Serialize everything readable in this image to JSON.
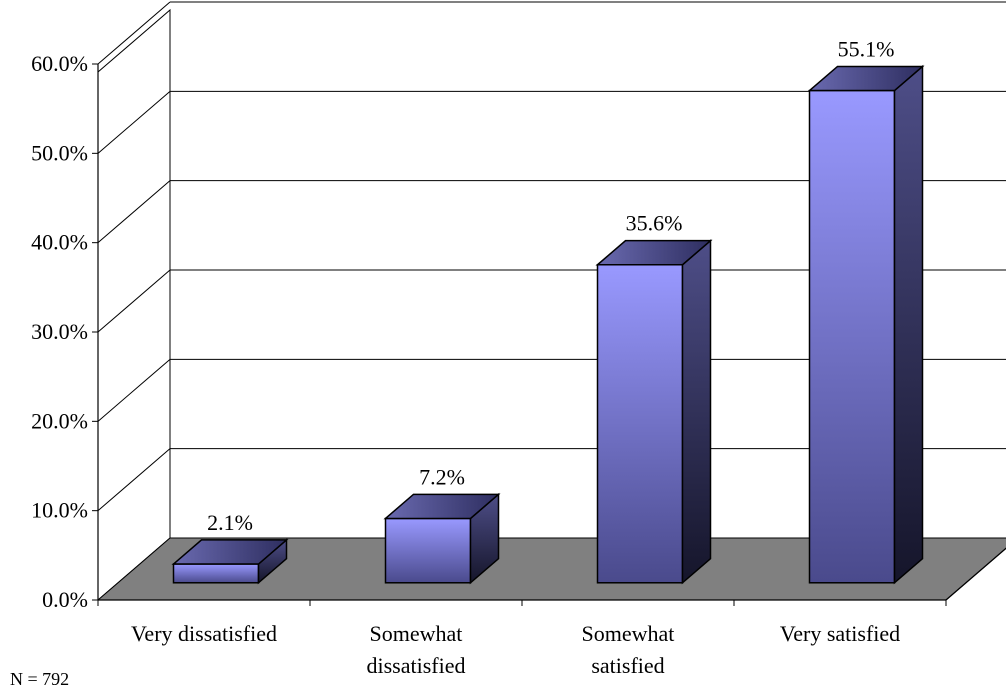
{
  "note": "N = 792",
  "colors": {
    "bar_front_top": "#9999ff",
    "bar_front_bottom": "#4a4a8c",
    "bar_side_top": "#4e4e88",
    "bar_side_bottom": "#15152a",
    "bar_top_face": "#3b3b78",
    "floor": "#808080",
    "grid": "#000000"
  },
  "chart_data": {
    "type": "bar",
    "categories": [
      [
        "Very dissatisfied"
      ],
      [
        "Somewhat",
        "dissatisfied"
      ],
      [
        "Somewhat",
        "satisfied"
      ],
      [
        "Very satisfied"
      ]
    ],
    "values": [
      2.1,
      7.2,
      35.6,
      55.1
    ],
    "value_labels": [
      "2.1%",
      "7.2%",
      "35.6%",
      "55.1%"
    ],
    "yticks": [
      "0.0%",
      "10.0%",
      "20.0%",
      "30.0%",
      "40.0%",
      "50.0%",
      "60.0%"
    ],
    "ylim": [
      0,
      60
    ],
    "grid": true,
    "three_d": true
  }
}
